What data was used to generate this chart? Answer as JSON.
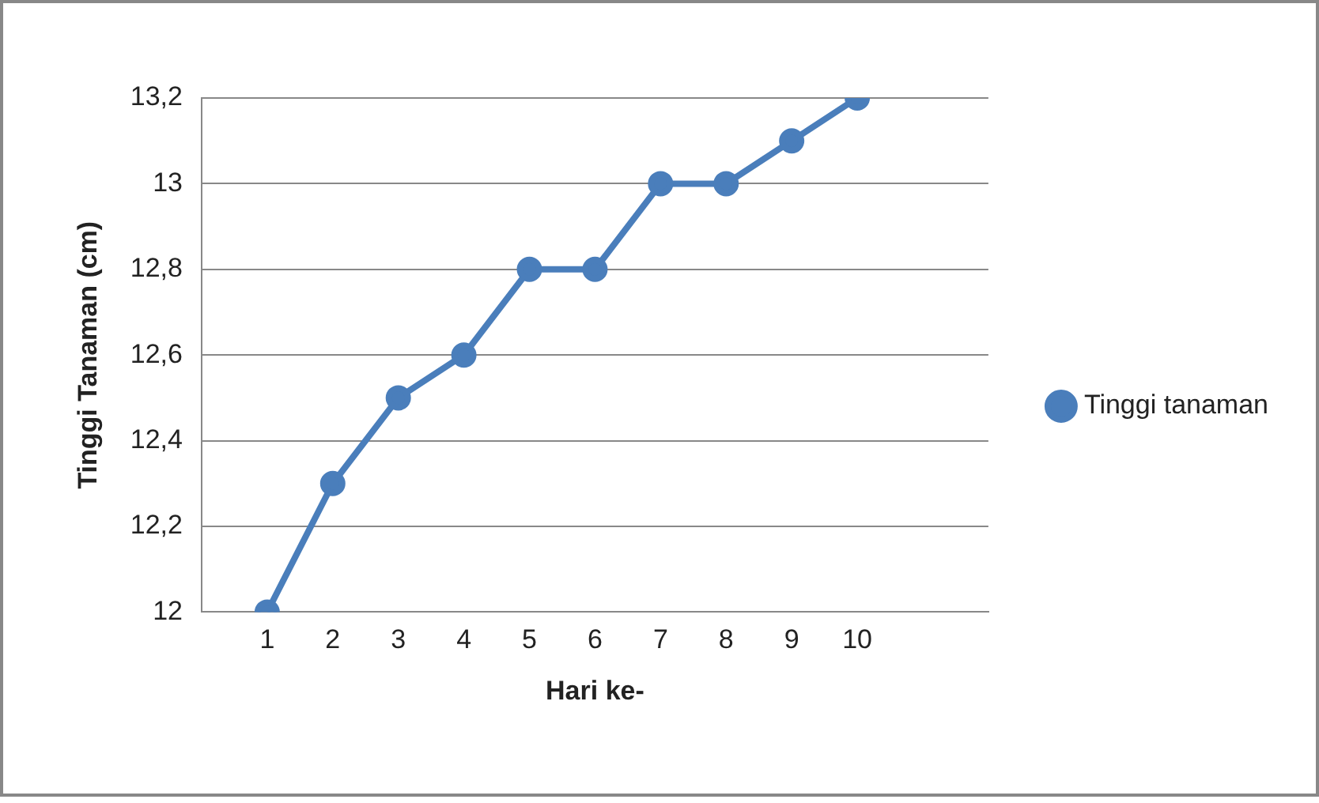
{
  "chart_data": {
    "type": "line",
    "xlabel": "Hari ke-",
    "ylabel": "Tinggi Tanaman (cm)",
    "categories": [
      null,
      "1",
      "2",
      "3",
      "4",
      "5",
      "6",
      "7",
      "8",
      "9",
      "10",
      null,
      null
    ],
    "series": [
      {
        "name": "Tinggi tanaman",
        "color": "#4a7ebb",
        "values": [
          null,
          12,
          12.3,
          12.5,
          12.6,
          12.8,
          12.8,
          13,
          13,
          13.1,
          13.2,
          null,
          null
        ]
      }
    ],
    "ylim": [
      12,
      13.2
    ],
    "yticks": [
      {
        "value": 12,
        "label": "12"
      },
      {
        "value": 12.2,
        "label": "12,2"
      },
      {
        "value": 12.4,
        "label": "12,4"
      },
      {
        "value": 12.6,
        "label": "12,6"
      },
      {
        "value": 12.8,
        "label": "12,8"
      },
      {
        "value": 13,
        "label": "13"
      },
      {
        "value": 13.2,
        "label": "13,2"
      }
    ],
    "grid": "y",
    "legend": "right",
    "marker": "circle",
    "line_style": "solid"
  }
}
